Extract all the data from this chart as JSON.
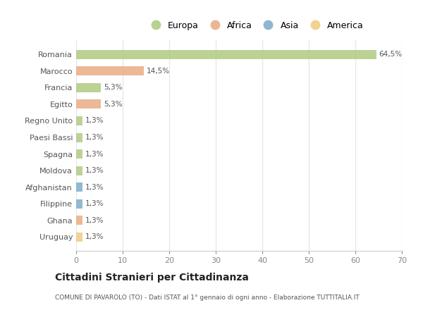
{
  "countries": [
    "Romania",
    "Marocco",
    "Francia",
    "Egitto",
    "Regno Unito",
    "Paesi Bassi",
    "Spagna",
    "Moldova",
    "Afghanistan",
    "Filippine",
    "Ghana",
    "Uruguay"
  ],
  "values": [
    64.5,
    14.5,
    5.3,
    5.3,
    1.3,
    1.3,
    1.3,
    1.3,
    1.3,
    1.3,
    1.3,
    1.3
  ],
  "labels": [
    "64,5%",
    "14,5%",
    "5,3%",
    "5,3%",
    "1,3%",
    "1,3%",
    "1,3%",
    "1,3%",
    "1,3%",
    "1,3%",
    "1,3%",
    "1,3%"
  ],
  "colors": [
    "#adc97e",
    "#e8a97e",
    "#adc97e",
    "#e8a97e",
    "#adc97e",
    "#adc97e",
    "#adc97e",
    "#adc97e",
    "#7aaac8",
    "#7aaac8",
    "#e8a97e",
    "#f0c97e"
  ],
  "legend_labels": [
    "Europa",
    "Africa",
    "Asia",
    "America"
  ],
  "legend_colors": [
    "#adc97e",
    "#e8a97e",
    "#7aaac8",
    "#f0c97e"
  ],
  "xlim": [
    0,
    70
  ],
  "xticks": [
    0,
    10,
    20,
    30,
    40,
    50,
    60,
    70
  ],
  "title": "Cittadini Stranieri per Cittadinanza",
  "subtitle": "COMUNE DI PAVAROLO (TO) - Dati ISTAT al 1° gennaio di ogni anno - Elaborazione TUTTITALIA.IT",
  "bg_color": "#ffffff",
  "grid_color": "#e8e8e8",
  "bar_height": 0.55
}
